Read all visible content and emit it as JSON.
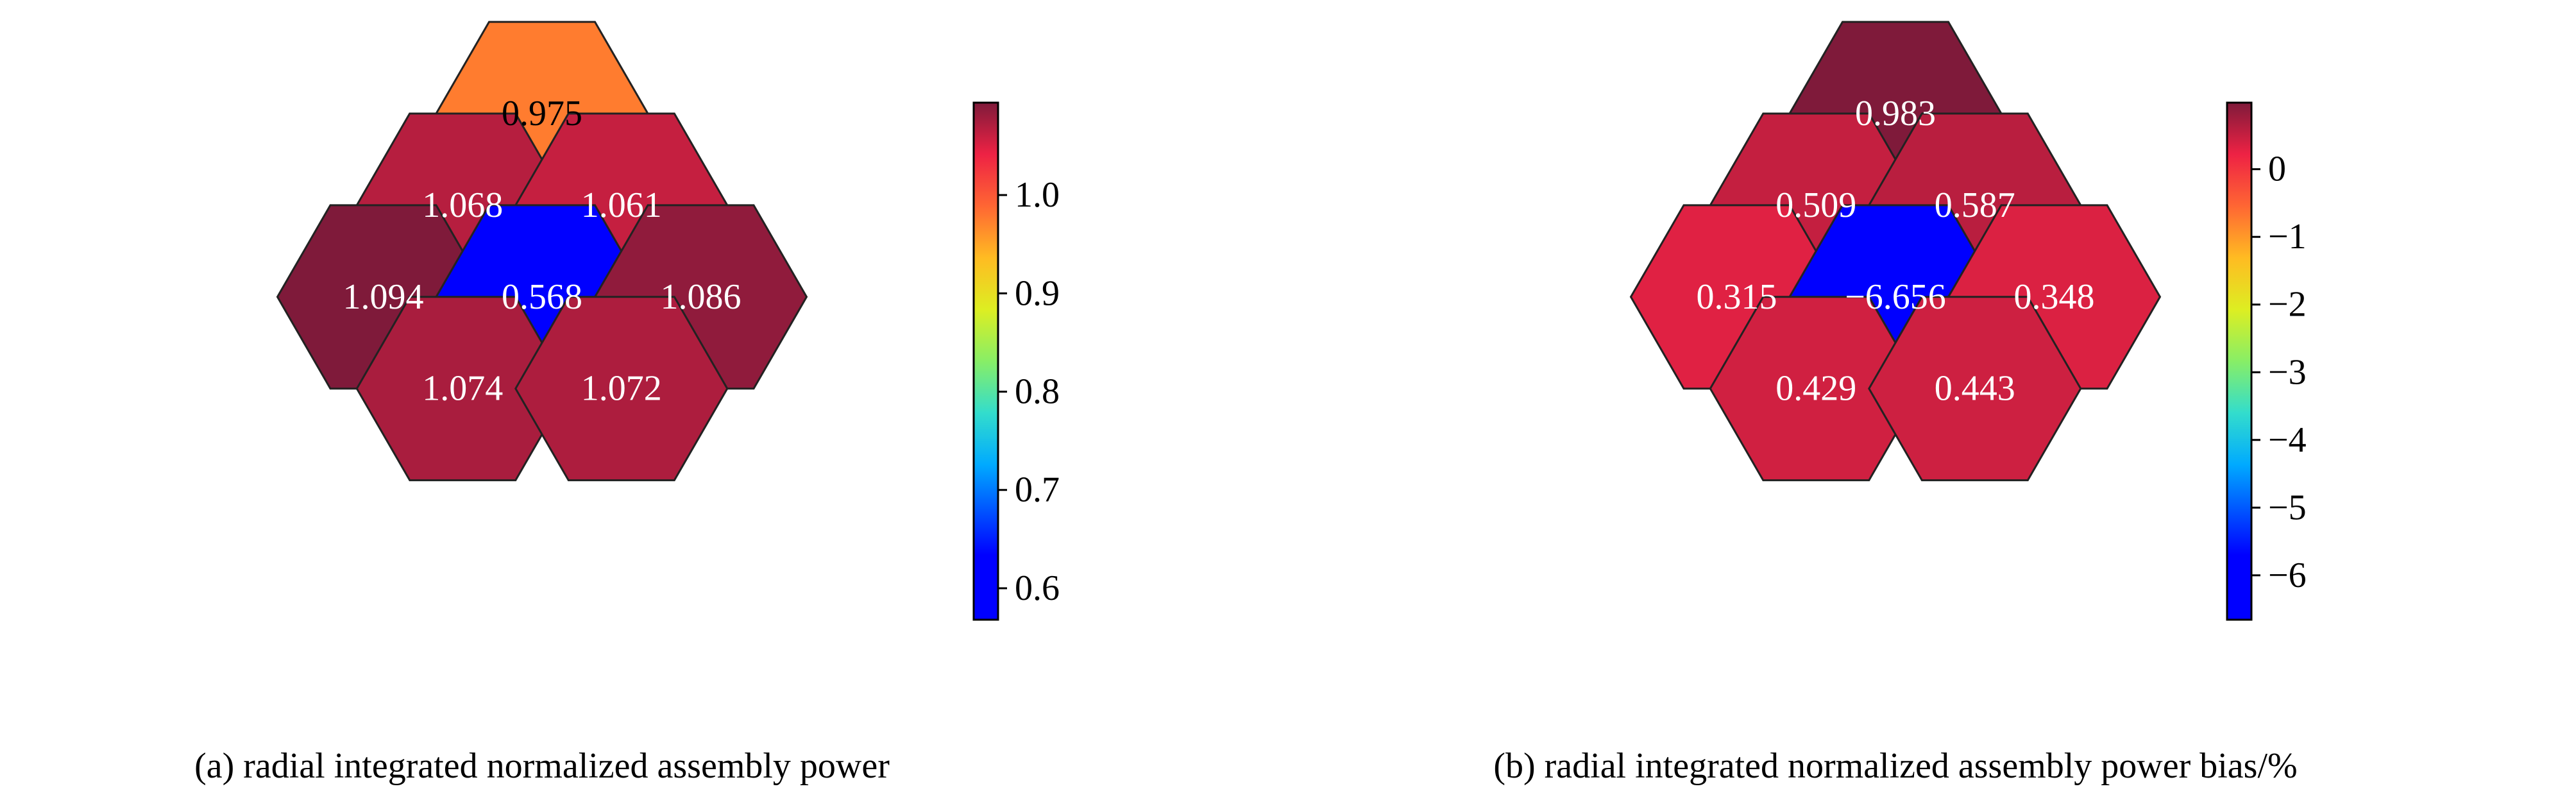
{
  "chart_data": [
    {
      "type": "heatmap",
      "layout": "hexagonal assembly map",
      "caption": "(a) radial integrated normalized assembly power",
      "colormap": "jet",
      "cells": [
        {
          "row": 0,
          "col": 0,
          "value": 0.975,
          "label": "0.975"
        },
        {
          "row": 1,
          "col": 0,
          "value": 1.068,
          "label": "1.068"
        },
        {
          "row": 1,
          "col": 1,
          "value": 1.061,
          "label": "1.061"
        },
        {
          "row": 2,
          "col": 0,
          "value": 1.094,
          "label": "1.094"
        },
        {
          "row": 2,
          "col": 1,
          "value": 0.568,
          "label": "0.568"
        },
        {
          "row": 2,
          "col": 2,
          "value": 1.086,
          "label": "1.086"
        },
        {
          "row": 3,
          "col": 0,
          "value": 1.074,
          "label": "1.074"
        },
        {
          "row": 3,
          "col": 1,
          "value": 1.072,
          "label": "1.072"
        }
      ],
      "colorbar": {
        "vmin": 0.568,
        "vmax": 1.094,
        "ticks": [
          0.6,
          0.7,
          0.8,
          0.9,
          1.0
        ],
        "tick_labels": [
          "0.6",
          "0.7",
          "0.8",
          "0.9",
          "1.0"
        ]
      }
    },
    {
      "type": "heatmap",
      "layout": "hexagonal assembly map",
      "caption": "(b) radial integrated normalized assembly power bias/%",
      "colormap": "jet",
      "cells": [
        {
          "row": 0,
          "col": 0,
          "value": 0.983,
          "label": "0.983"
        },
        {
          "row": 1,
          "col": 0,
          "value": 0.509,
          "label": "0.509"
        },
        {
          "row": 1,
          "col": 1,
          "value": 0.587,
          "label": "0.587"
        },
        {
          "row": 2,
          "col": 0,
          "value": 0.315,
          "label": "0.315"
        },
        {
          "row": 2,
          "col": 1,
          "value": -6.656,
          "label": "−6.656"
        },
        {
          "row": 2,
          "col": 2,
          "value": 0.348,
          "label": "0.348"
        },
        {
          "row": 3,
          "col": 0,
          "value": 0.429,
          "label": "0.429"
        },
        {
          "row": 3,
          "col": 1,
          "value": 0.443,
          "label": "0.443"
        }
      ],
      "colorbar": {
        "vmin": -6.656,
        "vmax": 0.983,
        "ticks": [
          -6,
          -5,
          -4,
          -3,
          -2,
          -1,
          0
        ],
        "tick_labels": [
          "−6",
          "−5",
          "−4",
          "−3",
          "−2",
          "−1",
          "0"
        ]
      }
    }
  ]
}
